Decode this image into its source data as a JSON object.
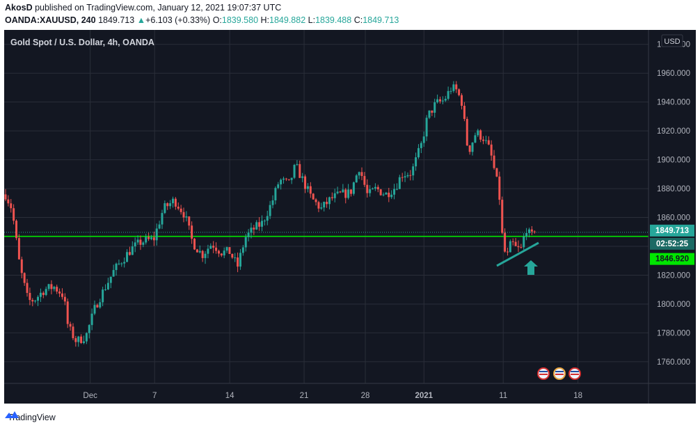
{
  "header": {
    "publisher": "AkosD",
    "published_text": "published on TradingView.com, January 12, 2021 19:07:37 UTC",
    "symbol": "OANDA:XAUUSD, 240",
    "last": "1849.713",
    "change": "+6.103 (+0.33%)",
    "open_label": "O:",
    "open": "1839.580",
    "high_label": "H:",
    "high": "1849.882",
    "low_label": "L:",
    "low": "1839.488",
    "close_label": "C:",
    "close": "1849.713"
  },
  "chart_data": {
    "type": "candlestick",
    "title": "Gold Spot / U.S. Dollar, 4h, OANDA",
    "currency": "USD",
    "ylim": [
      1745,
      1990
    ],
    "y_ticks": [
      1760,
      1780,
      1800,
      1820,
      1840,
      1860,
      1880,
      1900,
      1920,
      1940,
      1960,
      1980
    ],
    "x_ticks": [
      {
        "label": "Dec",
        "pos": 0.1335
      },
      {
        "label": "7",
        "pos": 0.2335
      },
      {
        "label": "14",
        "pos": 0.35
      },
      {
        "label": "21",
        "pos": 0.4655
      },
      {
        "label": "28",
        "pos": 0.5605
      },
      {
        "label": "2021",
        "pos": 0.6515
      },
      {
        "label": "11",
        "pos": 0.7745
      },
      {
        "label": "18",
        "pos": 0.8905
      }
    ],
    "horizontal_line": 1846.92,
    "last_price": 1849.713,
    "last_price_label": "1849.713",
    "countdown": "02:52:25",
    "hline_label": "1846.920",
    "path": [
      [
        0.0,
        1876
      ],
      [
        0.01,
        1866
      ],
      [
        0.022,
        1826
      ],
      [
        0.035,
        1802
      ],
      [
        0.045,
        1803
      ],
      [
        0.06,
        1810
      ],
      [
        0.075,
        1812
      ],
      [
        0.09,
        1806
      ],
      [
        0.097,
        1784
      ],
      [
        0.11,
        1774
      ],
      [
        0.125,
        1778
      ],
      [
        0.14,
        1799
      ],
      [
        0.155,
        1812
      ],
      [
        0.168,
        1823
      ],
      [
        0.18,
        1830
      ],
      [
        0.195,
        1838
      ],
      [
        0.21,
        1843
      ],
      [
        0.23,
        1845
      ],
      [
        0.245,
        1866
      ],
      [
        0.262,
        1872
      ],
      [
        0.278,
        1862
      ],
      [
        0.29,
        1843
      ],
      [
        0.305,
        1834
      ],
      [
        0.32,
        1842
      ],
      [
        0.335,
        1836
      ],
      [
        0.348,
        1836
      ],
      [
        0.36,
        1826
      ],
      [
        0.372,
        1846
      ],
      [
        0.385,
        1852
      ],
      [
        0.398,
        1856
      ],
      [
        0.413,
        1870
      ],
      [
        0.425,
        1886
      ],
      [
        0.44,
        1883
      ],
      [
        0.45,
        1896
      ],
      [
        0.46,
        1887
      ],
      [
        0.475,
        1873
      ],
      [
        0.49,
        1866
      ],
      [
        0.505,
        1873
      ],
      [
        0.52,
        1876
      ],
      [
        0.535,
        1877
      ],
      [
        0.549,
        1895
      ],
      [
        0.562,
        1875
      ],
      [
        0.575,
        1880
      ],
      [
        0.59,
        1876
      ],
      [
        0.605,
        1881
      ],
      [
        0.615,
        1890
      ],
      [
        0.63,
        1891
      ],
      [
        0.645,
        1910
      ],
      [
        0.655,
        1930
      ],
      [
        0.668,
        1939
      ],
      [
        0.68,
        1941
      ],
      [
        0.692,
        1950
      ],
      [
        0.7,
        1948
      ],
      [
        0.708,
        1940
      ],
      [
        0.718,
        1905
      ],
      [
        0.73,
        1919
      ],
      [
        0.742,
        1915
      ],
      [
        0.752,
        1906
      ],
      [
        0.76,
        1890
      ],
      [
        0.766,
        1877
      ],
      [
        0.772,
        1840
      ],
      [
        0.778,
        1832
      ],
      [
        0.785,
        1843
      ],
      [
        0.793,
        1838
      ],
      [
        0.8,
        1838
      ],
      [
        0.808,
        1853
      ],
      [
        0.815,
        1846
      ],
      [
        0.821,
        1850
      ]
    ]
  }
}
